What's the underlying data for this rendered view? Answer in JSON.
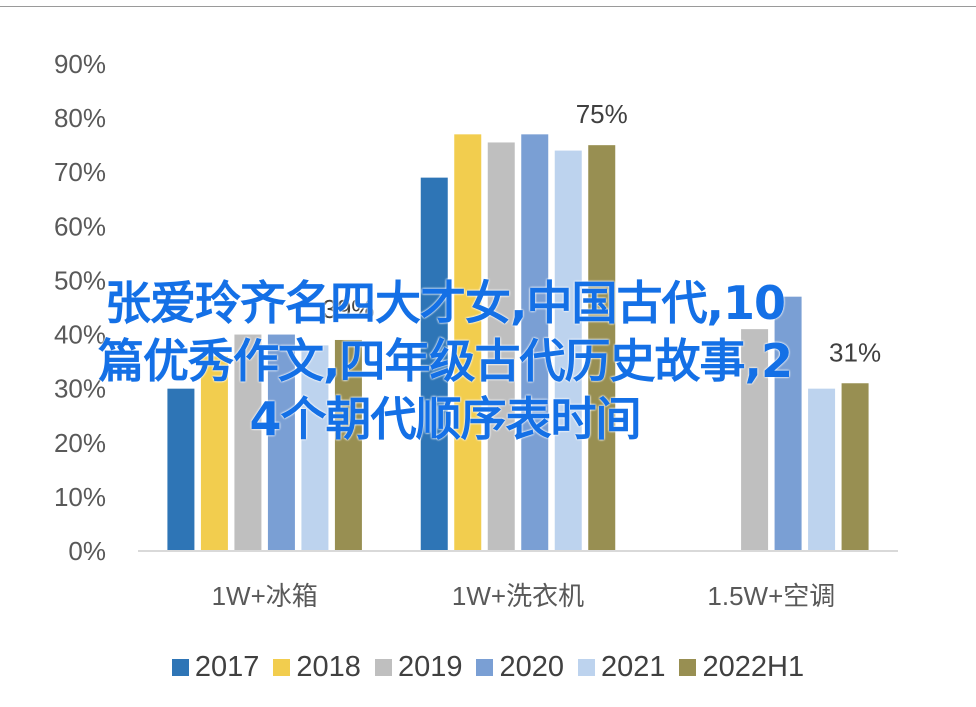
{
  "chart_data": {
    "type": "bar",
    "categories": [
      "1W+冰箱",
      "1W+洗衣机",
      "1.5W+空调"
    ],
    "ylim": [
      0,
      0.9
    ],
    "yticks": [
      "0%",
      "10%",
      "20%",
      "30%",
      "40%",
      "50%",
      "60%",
      "70%",
      "80%",
      "90%"
    ],
    "series": [
      {
        "name": "2017",
        "color": "#2e75b6",
        "values": [
          0.3,
          0.69,
          null
        ]
      },
      {
        "name": "2018",
        "color": "#f2cd4e",
        "values": [
          0.36,
          0.77,
          null
        ]
      },
      {
        "name": "2019",
        "color": "#bfbfbf",
        "values": [
          0.4,
          0.755,
          0.41
        ]
      },
      {
        "name": "2020",
        "color": "#7a9fd4",
        "values": [
          0.4,
          0.77,
          0.47
        ]
      },
      {
        "name": "2021",
        "color": "#bdd3ee",
        "values": [
          0.38,
          0.74,
          0.3
        ]
      },
      {
        "name": "2022H1",
        "color": "#988f52",
        "values": [
          0.39,
          0.75,
          0.31
        ]
      }
    ],
    "data_labels": [
      {
        "series": 5,
        "category": 0,
        "text": "39%"
      },
      {
        "series": 5,
        "category": 1,
        "text": "75%"
      },
      {
        "series": 5,
        "category": 2,
        "text": "31%"
      }
    ],
    "title": "",
    "xlabel": "",
    "ylabel": "",
    "grid": false,
    "legend_position": "bottom"
  },
  "overlay": {
    "line1": "张爱玲齐名四大才女,中国古代,10",
    "line2": "篇优秀作文,四年级古代历史故事,2",
    "line3": "4个朝代顺序表时间"
  }
}
